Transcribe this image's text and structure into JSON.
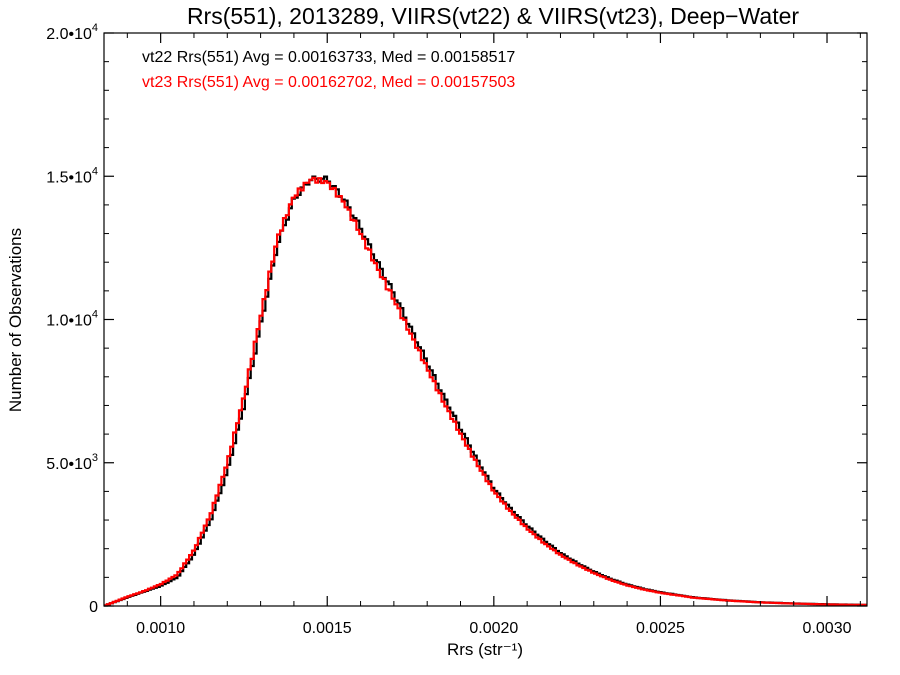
{
  "chart_data": {
    "type": "line",
    "title": "Rrs(551), 2013289, VIIRS(vt22) & VIIRS(vt23), Deep−Water",
    "xlabel": "Rrs (str⁻¹)",
    "ylabel": "Number of Observations",
    "xlim": [
      0.00083,
      0.00312
    ],
    "ylim": [
      0,
      20000
    ],
    "x_ticks": [
      {
        "value": 0.001,
        "label": "0.0010"
      },
      {
        "value": 0.0015,
        "label": "0.0015"
      },
      {
        "value": 0.002,
        "label": "0.0020"
      },
      {
        "value": 0.0025,
        "label": "0.0025"
      },
      {
        "value": 0.003,
        "label": "0.0030"
      }
    ],
    "y_ticks": [
      {
        "value": 0,
        "mantissa": "0",
        "exp": ""
      },
      {
        "value": 5000,
        "mantissa": "5.0•10",
        "exp": "3"
      },
      {
        "value": 10000,
        "mantissa": "1.0•10",
        "exp": "4"
      },
      {
        "value": 15000,
        "mantissa": "1.5•10",
        "exp": "4"
      },
      {
        "value": 20000,
        "mantissa": "2.0•10",
        "exp": "4"
      }
    ],
    "annotations": [
      {
        "text": "vt22 Rrs(551) Avg = 0.00163733, Med = 0.00158517",
        "color": "#000000"
      },
      {
        "text": "vt23 Rrs(551) Avg = 0.00162702, Med = 0.00157503",
        "color": "#ff0000"
      }
    ],
    "series": [
      {
        "color": "#000000",
        "x": [
          0.00083,
          0.0009,
          0.00095,
          0.001,
          0.00105,
          0.0011,
          0.00115,
          0.0012,
          0.00125,
          0.0013,
          0.00135,
          0.0014,
          0.00145,
          0.0015,
          0.00155,
          0.0016,
          0.00165,
          0.0017,
          0.00175,
          0.0018,
          0.00185,
          0.0019,
          0.00195,
          0.002,
          0.00205,
          0.0021,
          0.00215,
          0.0022,
          0.00225,
          0.0023,
          0.00235,
          0.0024,
          0.00245,
          0.0025,
          0.0026,
          0.0027,
          0.0028,
          0.0029,
          0.003,
          0.00312
        ],
        "y": [
          0,
          300,
          500,
          700,
          1000,
          1800,
          3000,
          4700,
          7000,
          9800,
          12600,
          14200,
          14900,
          14900,
          14200,
          13200,
          12000,
          10900,
          9700,
          8500,
          7300,
          6200,
          5100,
          4100,
          3400,
          2800,
          2300,
          1850,
          1500,
          1200,
          950,
          750,
          600,
          480,
          300,
          200,
          130,
          90,
          60,
          40
        ]
      },
      {
        "color": "#ff0000",
        "x": [
          0.00083,
          0.0009,
          0.00095,
          0.001,
          0.00105,
          0.0011,
          0.00115,
          0.0012,
          0.00125,
          0.0013,
          0.00135,
          0.0014,
          0.00145,
          0.0015,
          0.00155,
          0.0016,
          0.00165,
          0.0017,
          0.00175,
          0.0018,
          0.00185,
          0.0019,
          0.00195,
          0.002,
          0.00205,
          0.0021,
          0.00215,
          0.0022,
          0.00225,
          0.0023,
          0.00235,
          0.0024,
          0.00245,
          0.0025,
          0.0026,
          0.0027,
          0.0028,
          0.0029,
          0.003,
          0.00312
        ],
        "y": [
          0,
          320,
          520,
          760,
          1100,
          1950,
          3200,
          5000,
          7300,
          10100,
          12800,
          14300,
          14900,
          14800,
          14100,
          13000,
          11800,
          10700,
          9500,
          8300,
          7100,
          6000,
          4950,
          4000,
          3300,
          2700,
          2200,
          1780,
          1440,
          1150,
          910,
          720,
          575,
          460,
          290,
          190,
          125,
          85,
          55,
          35
        ]
      }
    ]
  }
}
